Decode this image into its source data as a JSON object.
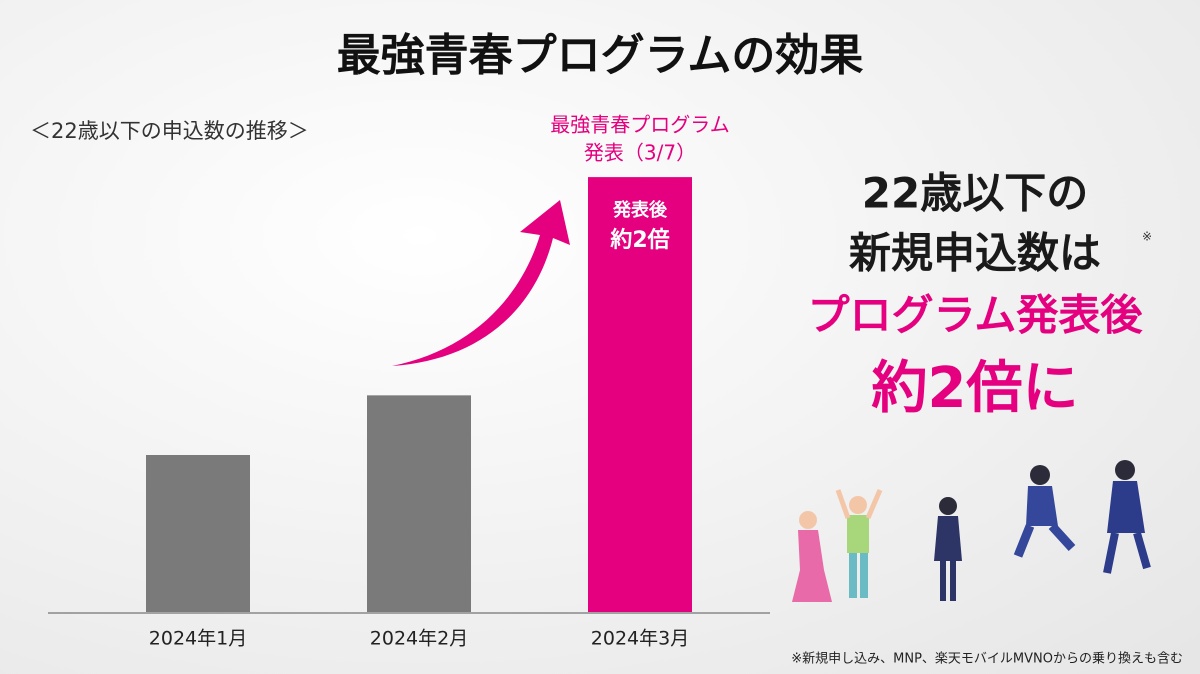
{
  "chart_data": {
    "type": "bar",
    "title": "最強青春プログラムの効果",
    "subtitle": "＜22歳以下の申込数の推移＞",
    "categories": [
      "2024年1月",
      "2024年2月",
      "2024年3月"
    ],
    "values": [
      1,
      1.38,
      2.77
    ],
    "colors": [
      "#7b7a7a",
      "#7b7a7a",
      "#e4007f"
    ],
    "ylim": [
      0,
      3
    ],
    "event_annotation": [
      "最強青春プログラム",
      "発表（3/7）"
    ],
    "bar_annotation": [
      "発表後",
      "約2倍"
    ]
  },
  "message": {
    "lines": [
      "22歳以下の",
      "新規申込数は",
      "プログラム発表後",
      "約2倍に"
    ],
    "mark": "※"
  },
  "footnote": "※新規申し込み、MNP、楽天モバイルMVNOからの乗り換えも含む"
}
